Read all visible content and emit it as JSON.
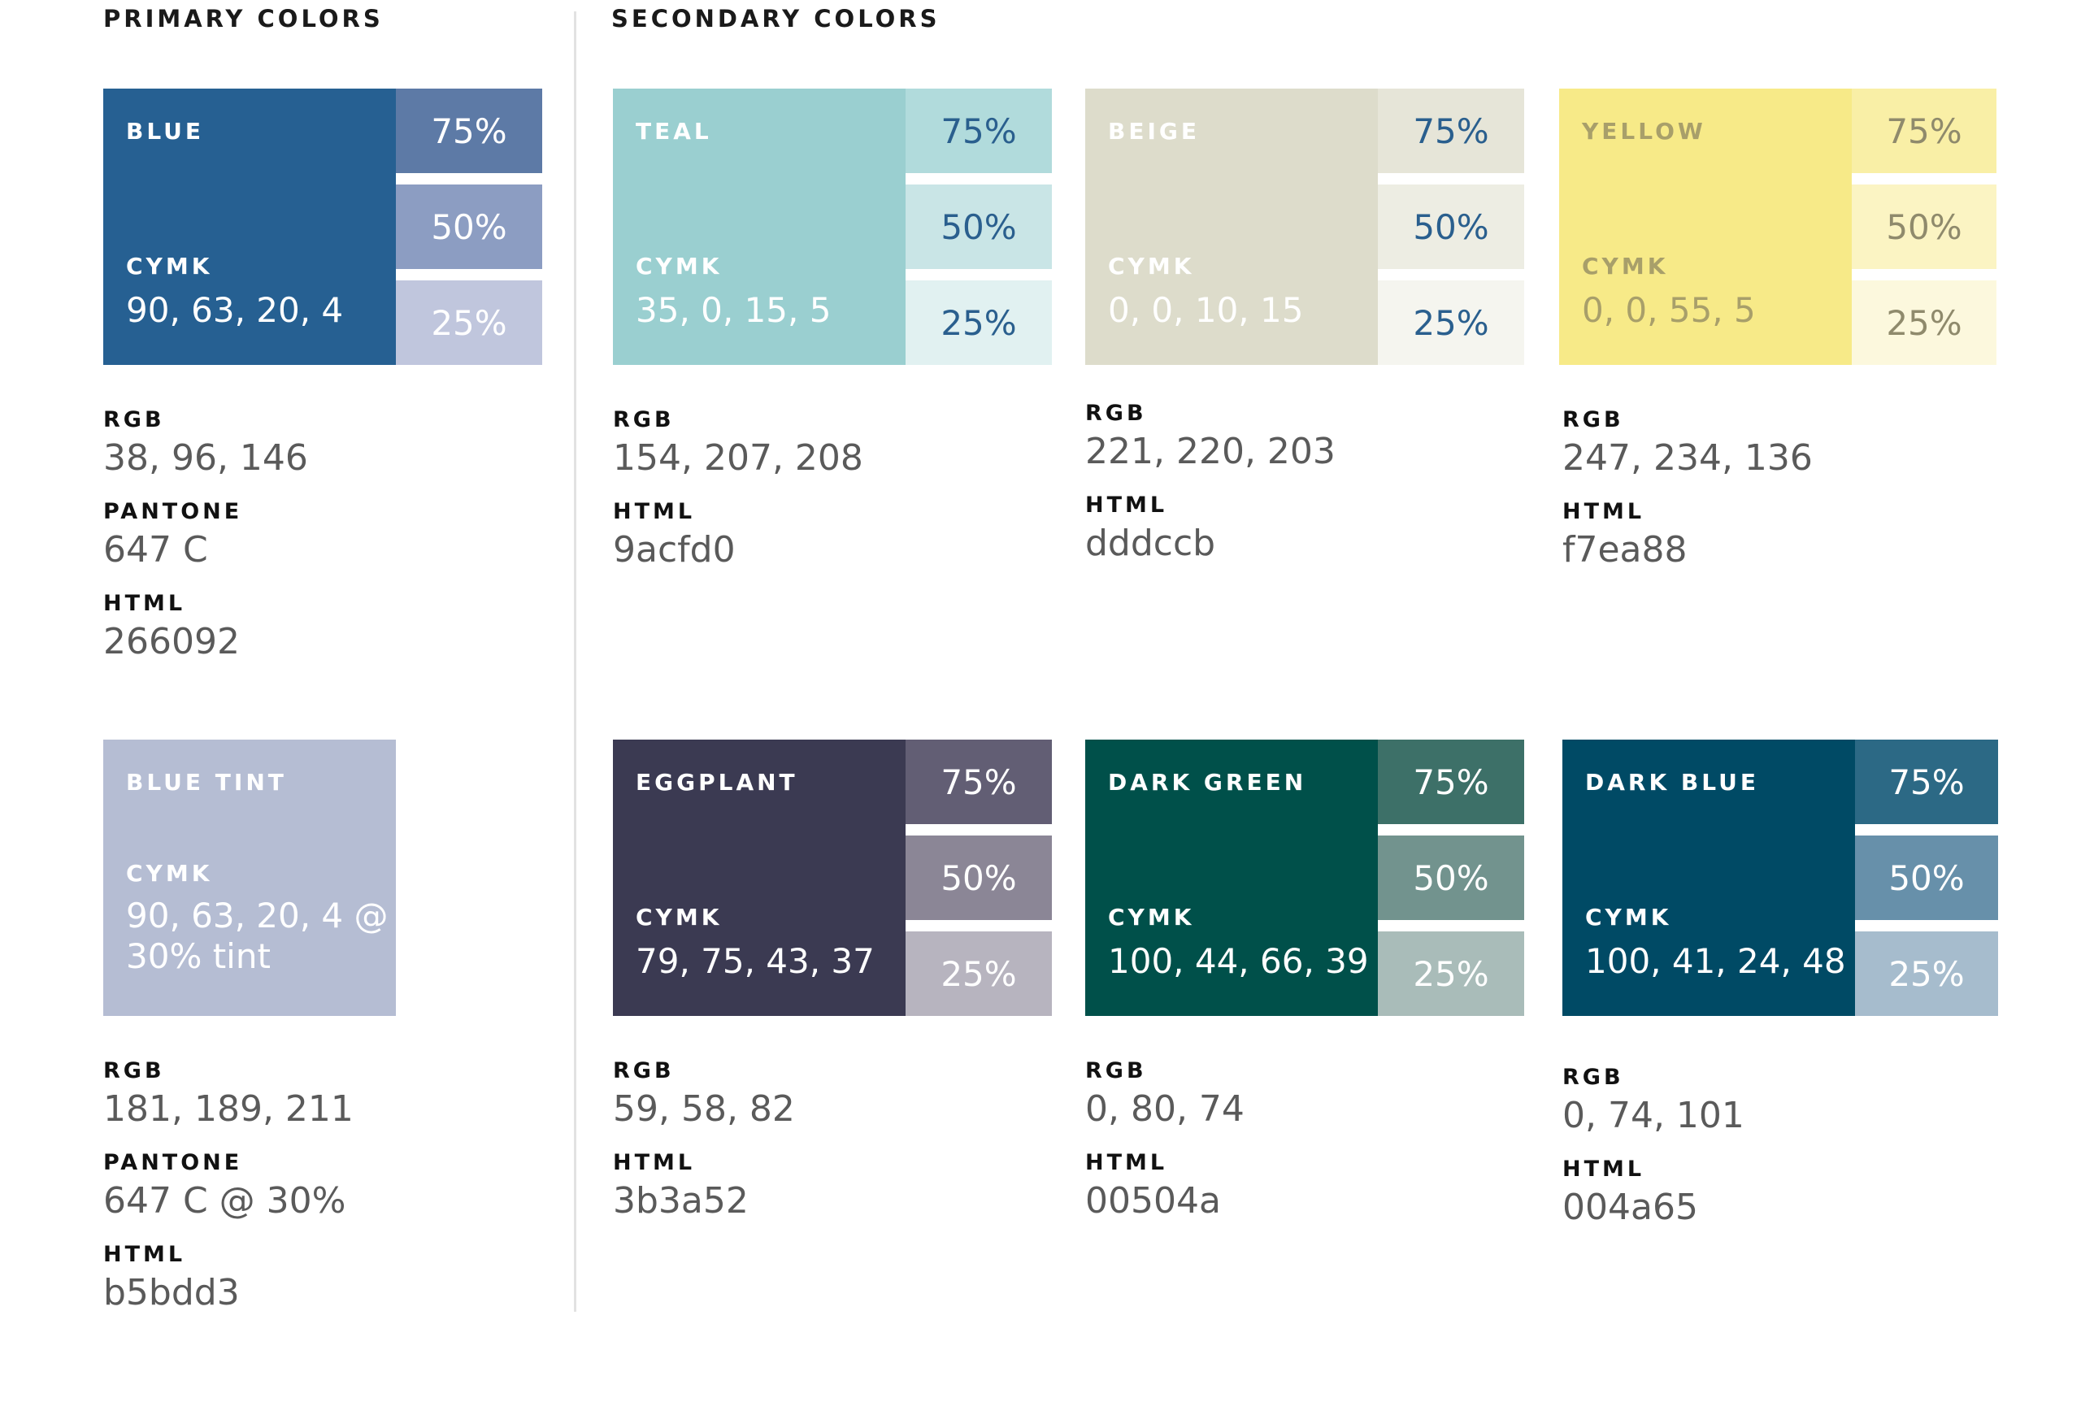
{
  "sections": {
    "primary_title": "PRIMARY COLORS",
    "secondary_title": "SECONDARY COLORS"
  },
  "tint_labels": {
    "t75": "75%",
    "t50": "50%",
    "t25": "25%"
  },
  "colors": {
    "blue": {
      "name": "BLUE",
      "cymk_label": "CYMK",
      "cymk": "90, 63, 20, 4",
      "rgb_label": "RGB",
      "rgb": "38, 96, 146",
      "pantone_label": "PANTONE",
      "pantone": "647 C",
      "html_label": "HTML",
      "html": "266092",
      "fill": "#266092",
      "tint75": "#5d7aa6",
      "tint50": "#8c9dc2",
      "tint25": "#c0c6dd",
      "text_color": "#ffffff",
      "tint_text_color": "#ffffff"
    },
    "blue_tint": {
      "name": "BLUE TINT",
      "cymk_label": "CYMK",
      "cymk": "90, 63, 20, 4 @ 30% tint",
      "rgb_label": "RGB",
      "rgb": "181, 189, 211",
      "pantone_label": "PANTONE",
      "pantone": "647 C @ 30%",
      "html_label": "HTML",
      "html": "b5bdd3",
      "fill": "#b5bdd3",
      "text_color": "#ffffff"
    },
    "teal": {
      "name": "TEAL",
      "cymk_label": "CYMK",
      "cymk": "35, 0, 15, 5",
      "rgb_label": "RGB",
      "rgb": "154, 207, 208",
      "html_label": "HTML",
      "html": "9acfd0",
      "fill": "#9acfd0",
      "tint75": "#b1dbdc",
      "tint50": "#c9e5e6",
      "tint25": "#e1f1f1",
      "text_color": "#ffffff",
      "tint_text_color": "#2a5f8e"
    },
    "beige": {
      "name": "BEIGE",
      "cymk_label": "CYMK",
      "cymk": "0, 0, 10, 15",
      "rgb_label": "RGB",
      "rgb": "221, 220, 203",
      "html_label": "HTML",
      "html": "dddccb",
      "fill": "#dddccb",
      "tint75": "#e6e5d8",
      "tint50": "#edede3",
      "tint25": "#f5f5ef",
      "text_color": "#ffffff",
      "tint_text_color": "#2a5f8e"
    },
    "yellow": {
      "name": "YELLOW",
      "cymk_label": "CYMK",
      "cymk": "0, 0, 55, 5",
      "rgb_label": "RGB",
      "rgb": "247, 234, 136",
      "html_label": "HTML",
      "html": "f7ea88",
      "fill": "#f7ea88",
      "tint75": "#f9efa6",
      "tint50": "#fbf4c3",
      "tint25": "#fcf8dd",
      "text_color": "#a89f6a",
      "tint_text_color": "#8f8a6c"
    },
    "eggplant": {
      "name": "EGGPLANT",
      "cymk_label": "CYMK",
      "cymk": "79, 75, 43, 37",
      "rgb_label": "RGB",
      "rgb": "59, 58, 82",
      "html_label": "HTML",
      "html": "3b3a52",
      "fill": "#3b3a52",
      "tint75": "#625e74",
      "tint50": "#8b8696",
      "tint25": "#b7b4bf",
      "text_color": "#ffffff",
      "tint_text_color": "#ffffff"
    },
    "dark_green": {
      "name": "DARK GREEN",
      "cymk_label": "CYMK",
      "cymk": "100, 44, 66, 39",
      "rgb_label": "RGB",
      "rgb": "0, 80, 74",
      "html_label": "HTML",
      "html": "00504a",
      "fill": "#00504a",
      "tint75": "#3d7068",
      "tint50": "#72938e",
      "tint25": "#a9bcb9",
      "text_color": "#ffffff",
      "tint_text_color": "#ffffff"
    },
    "dark_blue": {
      "name": "DARK BLUE",
      "cymk_label": "CYMK",
      "cymk": "100, 41, 24, 48",
      "rgb_label": "RGB",
      "rgb": "0, 74, 101",
      "html_label": "HTML",
      "html": "004a65",
      "fill": "#004a65",
      "tint75": "#2c6985",
      "tint50": "#6790aa",
      "tint25": "#a6bccd",
      "text_color": "#ffffff",
      "tint_text_color": "#ffffff"
    }
  }
}
